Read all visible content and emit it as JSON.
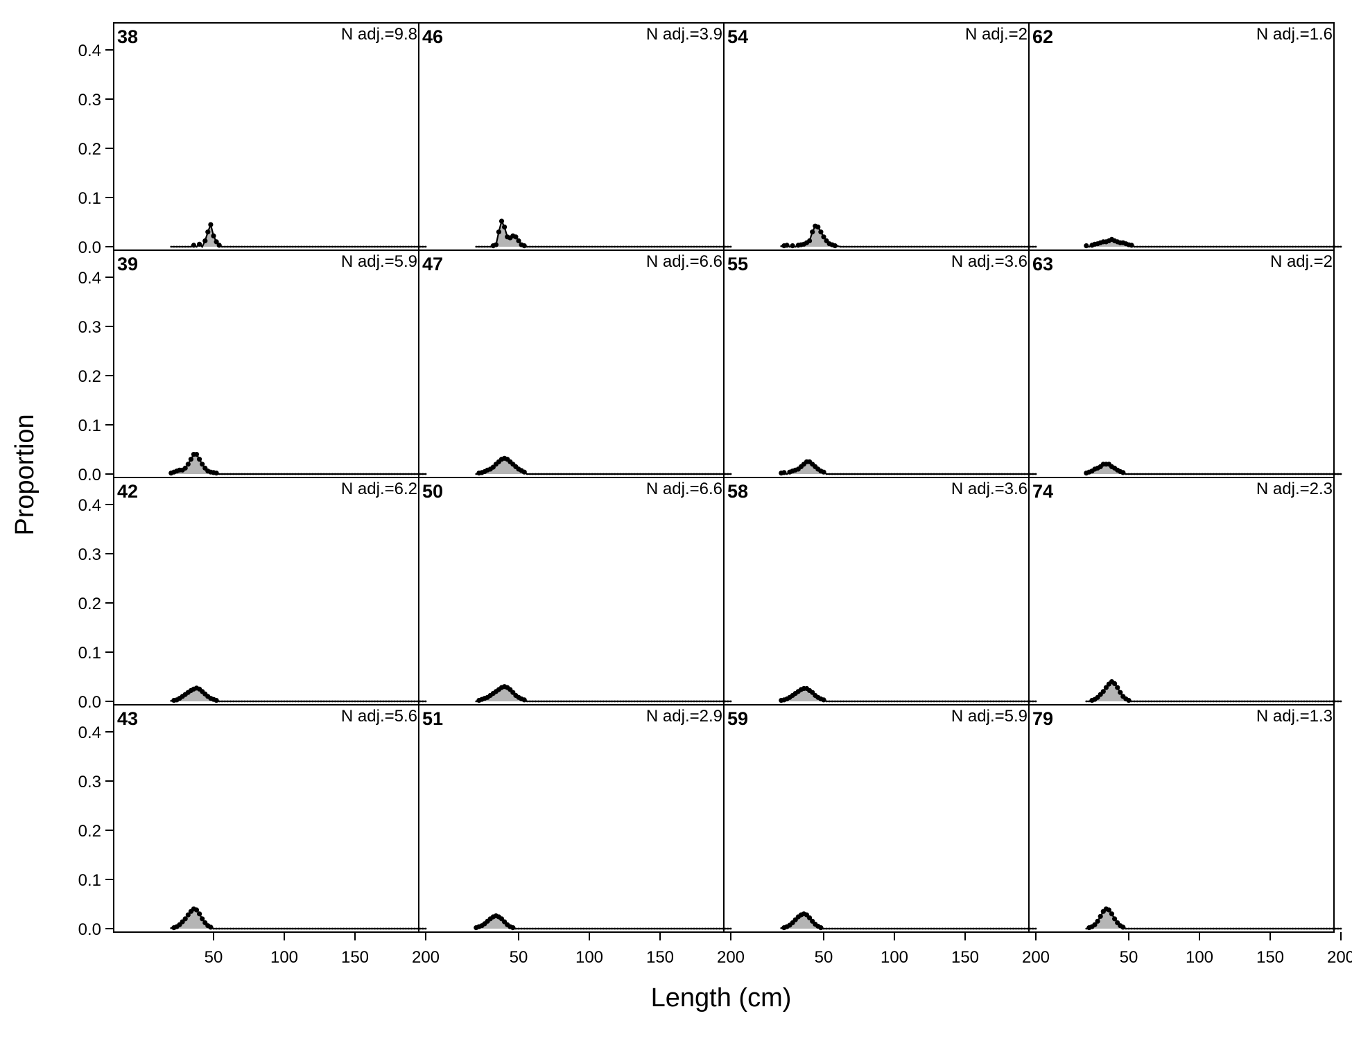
{
  "chart_data": {
    "type": "area",
    "xlabel": "Length (cm)",
    "ylabel": "Proportion",
    "xlim": [
      0,
      200
    ],
    "ylim": [
      0,
      0.45
    ],
    "x_ticks": [
      50,
      100,
      150,
      200
    ],
    "y_ticks": [
      0.0,
      0.1,
      0.2,
      0.3,
      0.4
    ],
    "y_tick_labels": [
      "0.0",
      "0.1",
      "0.2",
      "0.3",
      "0.4"
    ],
    "grid": false,
    "legend": "none",
    "colors": {
      "fill": "#b5b5b5",
      "line": "#000000",
      "marker": "#000000"
    },
    "layout": {
      "rows": 4,
      "cols": 4
    },
    "x_range": {
      "start": 20,
      "end": 200,
      "step": 2
    },
    "panels": [
      {
        "id": "38",
        "nadj_label": "N adj.=9.8",
        "peaks": [
          [
            36,
            0.003
          ],
          [
            40,
            0.005
          ],
          [
            44,
            0.012
          ],
          [
            46,
            0.03
          ],
          [
            48,
            0.045
          ],
          [
            50,
            0.022
          ],
          [
            52,
            0.01
          ],
          [
            54,
            0.003
          ]
        ]
      },
      {
        "id": "46",
        "nadj_label": "N adj.=3.9",
        "peaks": [
          [
            32,
            0.002
          ],
          [
            34,
            0.004
          ],
          [
            36,
            0.03
          ],
          [
            38,
            0.052
          ],
          [
            40,
            0.04
          ],
          [
            42,
            0.02
          ],
          [
            44,
            0.018
          ],
          [
            46,
            0.022
          ],
          [
            48,
            0.02
          ],
          [
            50,
            0.012
          ],
          [
            52,
            0.004
          ],
          [
            54,
            0.002
          ]
        ]
      },
      {
        "id": "54",
        "nadj_label": "N adj.=2",
        "peaks": [
          [
            20,
            0.001
          ],
          [
            22,
            0.002
          ],
          [
            24,
            0.003
          ],
          [
            28,
            0.002
          ],
          [
            32,
            0.003
          ],
          [
            34,
            0.004
          ],
          [
            36,
            0.005
          ],
          [
            38,
            0.008
          ],
          [
            40,
            0.012
          ],
          [
            42,
            0.03
          ],
          [
            44,
            0.042
          ],
          [
            46,
            0.04
          ],
          [
            48,
            0.03
          ],
          [
            50,
            0.02
          ],
          [
            52,
            0.012
          ],
          [
            54,
            0.006
          ],
          [
            56,
            0.004
          ],
          [
            58,
            0.002
          ],
          [
            60,
            0.001
          ]
        ]
      },
      {
        "id": "62",
        "nadj_label": "N adj.=1.6",
        "peaks": [
          [
            20,
            0.002
          ],
          [
            24,
            0.003
          ],
          [
            26,
            0.005
          ],
          [
            28,
            0.006
          ],
          [
            30,
            0.008
          ],
          [
            32,
            0.01
          ],
          [
            34,
            0.01
          ],
          [
            36,
            0.012
          ],
          [
            38,
            0.015
          ],
          [
            40,
            0.012
          ],
          [
            42,
            0.01
          ],
          [
            44,
            0.008
          ],
          [
            46,
            0.008
          ],
          [
            48,
            0.006
          ],
          [
            50,
            0.004
          ],
          [
            52,
            0.003
          ]
        ]
      },
      {
        "id": "39",
        "nadj_label": "N adj.=5.9",
        "peaks": [
          [
            20,
            0.002
          ],
          [
            22,
            0.004
          ],
          [
            24,
            0.006
          ],
          [
            26,
            0.008
          ],
          [
            28,
            0.008
          ],
          [
            30,
            0.012
          ],
          [
            32,
            0.02
          ],
          [
            34,
            0.03
          ],
          [
            36,
            0.04
          ],
          [
            38,
            0.04
          ],
          [
            40,
            0.03
          ],
          [
            42,
            0.02
          ],
          [
            44,
            0.012
          ],
          [
            46,
            0.006
          ],
          [
            48,
            0.004
          ],
          [
            50,
            0.003
          ],
          [
            52,
            0.002
          ]
        ]
      },
      {
        "id": "47",
        "nadj_label": "N adj.=6.6",
        "peaks": [
          [
            22,
            0.002
          ],
          [
            24,
            0.003
          ],
          [
            26,
            0.005
          ],
          [
            28,
            0.008
          ],
          [
            30,
            0.01
          ],
          [
            32,
            0.014
          ],
          [
            34,
            0.02
          ],
          [
            36,
            0.025
          ],
          [
            38,
            0.03
          ],
          [
            40,
            0.032
          ],
          [
            42,
            0.03
          ],
          [
            44,
            0.025
          ],
          [
            46,
            0.02
          ],
          [
            48,
            0.015
          ],
          [
            50,
            0.01
          ],
          [
            52,
            0.007
          ],
          [
            54,
            0.004
          ]
        ]
      },
      {
        "id": "55",
        "nadj_label": "N adj.=3.6",
        "peaks": [
          [
            20,
            0.002
          ],
          [
            22,
            0.003
          ],
          [
            26,
            0.004
          ],
          [
            28,
            0.006
          ],
          [
            30,
            0.008
          ],
          [
            32,
            0.01
          ],
          [
            34,
            0.015
          ],
          [
            36,
            0.02
          ],
          [
            38,
            0.025
          ],
          [
            40,
            0.025
          ],
          [
            42,
            0.02
          ],
          [
            44,
            0.015
          ],
          [
            46,
            0.01
          ],
          [
            48,
            0.006
          ],
          [
            50,
            0.004
          ]
        ]
      },
      {
        "id": "63",
        "nadj_label": "N adj.=2",
        "peaks": [
          [
            20,
            0.002
          ],
          [
            22,
            0.004
          ],
          [
            24,
            0.006
          ],
          [
            26,
            0.01
          ],
          [
            28,
            0.012
          ],
          [
            30,
            0.015
          ],
          [
            32,
            0.02
          ],
          [
            34,
            0.02
          ],
          [
            36,
            0.02
          ],
          [
            38,
            0.015
          ],
          [
            40,
            0.012
          ],
          [
            42,
            0.008
          ],
          [
            44,
            0.005
          ],
          [
            46,
            0.003
          ]
        ]
      },
      {
        "id": "42",
        "nadj_label": "N adj.=6.2",
        "peaks": [
          [
            20,
            0.001
          ],
          [
            22,
            0.002
          ],
          [
            24,
            0.003
          ],
          [
            26,
            0.006
          ],
          [
            28,
            0.01
          ],
          [
            30,
            0.014
          ],
          [
            32,
            0.018
          ],
          [
            34,
            0.022
          ],
          [
            36,
            0.025
          ],
          [
            38,
            0.027
          ],
          [
            40,
            0.025
          ],
          [
            42,
            0.02
          ],
          [
            44,
            0.015
          ],
          [
            46,
            0.01
          ],
          [
            48,
            0.006
          ],
          [
            50,
            0.004
          ],
          [
            52,
            0.002
          ]
        ]
      },
      {
        "id": "50",
        "nadj_label": "N adj.=6.6",
        "peaks": [
          [
            22,
            0.002
          ],
          [
            24,
            0.004
          ],
          [
            26,
            0.006
          ],
          [
            28,
            0.008
          ],
          [
            30,
            0.012
          ],
          [
            32,
            0.016
          ],
          [
            34,
            0.02
          ],
          [
            36,
            0.024
          ],
          [
            38,
            0.028
          ],
          [
            40,
            0.03
          ],
          [
            42,
            0.028
          ],
          [
            44,
            0.024
          ],
          [
            46,
            0.018
          ],
          [
            48,
            0.012
          ],
          [
            50,
            0.008
          ],
          [
            52,
            0.005
          ],
          [
            54,
            0.003
          ]
        ]
      },
      {
        "id": "58",
        "nadj_label": "N adj.=3.6",
        "peaks": [
          [
            20,
            0.002
          ],
          [
            22,
            0.003
          ],
          [
            24,
            0.005
          ],
          [
            26,
            0.008
          ],
          [
            28,
            0.012
          ],
          [
            30,
            0.016
          ],
          [
            32,
            0.02
          ],
          [
            34,
            0.024
          ],
          [
            36,
            0.026
          ],
          [
            38,
            0.026
          ],
          [
            40,
            0.022
          ],
          [
            42,
            0.018
          ],
          [
            44,
            0.012
          ],
          [
            46,
            0.008
          ],
          [
            48,
            0.005
          ],
          [
            50,
            0.003
          ]
        ]
      },
      {
        "id": "74",
        "nadj_label": "N adj.=2.3",
        "peaks": [
          [
            24,
            0.002
          ],
          [
            26,
            0.004
          ],
          [
            28,
            0.008
          ],
          [
            30,
            0.014
          ],
          [
            32,
            0.02
          ],
          [
            34,
            0.028
          ],
          [
            36,
            0.035
          ],
          [
            38,
            0.04
          ],
          [
            40,
            0.036
          ],
          [
            42,
            0.028
          ],
          [
            44,
            0.018
          ],
          [
            46,
            0.01
          ],
          [
            48,
            0.005
          ],
          [
            50,
            0.002
          ]
        ]
      },
      {
        "id": "43",
        "nadj_label": "N adj.=5.6",
        "peaks": [
          [
            20,
            0.001
          ],
          [
            22,
            0.002
          ],
          [
            24,
            0.004
          ],
          [
            26,
            0.008
          ],
          [
            28,
            0.014
          ],
          [
            30,
            0.02
          ],
          [
            32,
            0.028
          ],
          [
            34,
            0.035
          ],
          [
            36,
            0.04
          ],
          [
            38,
            0.038
          ],
          [
            40,
            0.03
          ],
          [
            42,
            0.02
          ],
          [
            44,
            0.012
          ],
          [
            46,
            0.006
          ],
          [
            48,
            0.003
          ]
        ]
      },
      {
        "id": "51",
        "nadj_label": "N adj.=2.9",
        "peaks": [
          [
            20,
            0.002
          ],
          [
            22,
            0.004
          ],
          [
            24,
            0.006
          ],
          [
            26,
            0.01
          ],
          [
            28,
            0.015
          ],
          [
            30,
            0.02
          ],
          [
            32,
            0.024
          ],
          [
            34,
            0.026
          ],
          [
            36,
            0.024
          ],
          [
            38,
            0.02
          ],
          [
            40,
            0.014
          ],
          [
            42,
            0.008
          ],
          [
            44,
            0.004
          ],
          [
            46,
            0.002
          ]
        ]
      },
      {
        "id": "59",
        "nadj_label": "N adj.=5.9",
        "peaks": [
          [
            20,
            0.001
          ],
          [
            22,
            0.002
          ],
          [
            24,
            0.004
          ],
          [
            26,
            0.007
          ],
          [
            28,
            0.012
          ],
          [
            30,
            0.018
          ],
          [
            32,
            0.024
          ],
          [
            34,
            0.028
          ],
          [
            36,
            0.03
          ],
          [
            38,
            0.028
          ],
          [
            40,
            0.022
          ],
          [
            42,
            0.015
          ],
          [
            44,
            0.009
          ],
          [
            46,
            0.005
          ],
          [
            48,
            0.002
          ]
        ]
      },
      {
        "id": "79",
        "nadj_label": "N adj.=1.3",
        "peaks": [
          [
            22,
            0.002
          ],
          [
            24,
            0.004
          ],
          [
            26,
            0.008
          ],
          [
            28,
            0.015
          ],
          [
            30,
            0.025
          ],
          [
            32,
            0.035
          ],
          [
            34,
            0.04
          ],
          [
            36,
            0.038
          ],
          [
            38,
            0.03
          ],
          [
            40,
            0.02
          ],
          [
            42,
            0.012
          ],
          [
            44,
            0.006
          ],
          [
            46,
            0.003
          ]
        ]
      }
    ]
  }
}
